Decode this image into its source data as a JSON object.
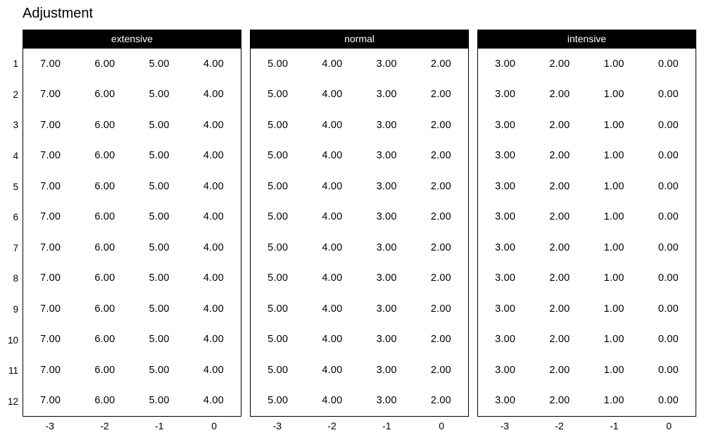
{
  "title": "Adjustment",
  "colors": {
    "background": "#ffffff",
    "header_bg": "#000000",
    "header_text": "#ffffff",
    "border": "#000000",
    "text": "#000000"
  },
  "chart_data": {
    "type": "table",
    "title": "Adjustment",
    "xlabel": "",
    "ylabel": "",
    "legend": "none",
    "grid": "off",
    "row_labels": [
      "1",
      "2",
      "3",
      "4",
      "5",
      "6",
      "7",
      "8",
      "9",
      "10",
      "11",
      "12"
    ],
    "x_ticks": [
      "-3",
      "-2",
      "-1",
      "0"
    ],
    "panels": [
      {
        "label": "extensive",
        "x_ticks": [
          "-3",
          "-2",
          "-1",
          "0"
        ],
        "values": [
          [
            7,
            6,
            5,
            4
          ],
          [
            7,
            6,
            5,
            4
          ],
          [
            7,
            6,
            5,
            4
          ],
          [
            7,
            6,
            5,
            4
          ],
          [
            7,
            6,
            5,
            4
          ],
          [
            7,
            6,
            5,
            4
          ],
          [
            7,
            6,
            5,
            4
          ],
          [
            7,
            6,
            5,
            4
          ],
          [
            7,
            6,
            5,
            4
          ],
          [
            7,
            6,
            5,
            4
          ],
          [
            7,
            6,
            5,
            4
          ],
          [
            7,
            6,
            5,
            4
          ]
        ]
      },
      {
        "label": "normal",
        "x_ticks": [
          "-3",
          "-2",
          "-1",
          "0"
        ],
        "values": [
          [
            5,
            4,
            3,
            2
          ],
          [
            5,
            4,
            3,
            2
          ],
          [
            5,
            4,
            3,
            2
          ],
          [
            5,
            4,
            3,
            2
          ],
          [
            5,
            4,
            3,
            2
          ],
          [
            5,
            4,
            3,
            2
          ],
          [
            5,
            4,
            3,
            2
          ],
          [
            5,
            4,
            3,
            2
          ],
          [
            5,
            4,
            3,
            2
          ],
          [
            5,
            4,
            3,
            2
          ],
          [
            5,
            4,
            3,
            2
          ],
          [
            5,
            4,
            3,
            2
          ]
        ]
      },
      {
        "label": "intensive",
        "x_ticks": [
          "-3",
          "-2",
          "-1",
          "0"
        ],
        "values": [
          [
            3,
            2,
            1,
            0
          ],
          [
            3,
            2,
            1,
            0
          ],
          [
            3,
            2,
            1,
            0
          ],
          [
            3,
            2,
            1,
            0
          ],
          [
            3,
            2,
            1,
            0
          ],
          [
            3,
            2,
            1,
            0
          ],
          [
            3,
            2,
            1,
            0
          ],
          [
            3,
            2,
            1,
            0
          ],
          [
            3,
            2,
            1,
            0
          ],
          [
            3,
            2,
            1,
            0
          ],
          [
            3,
            2,
            1,
            0
          ],
          [
            3,
            2,
            1,
            0
          ]
        ]
      }
    ],
    "value_decimals": 2
  }
}
